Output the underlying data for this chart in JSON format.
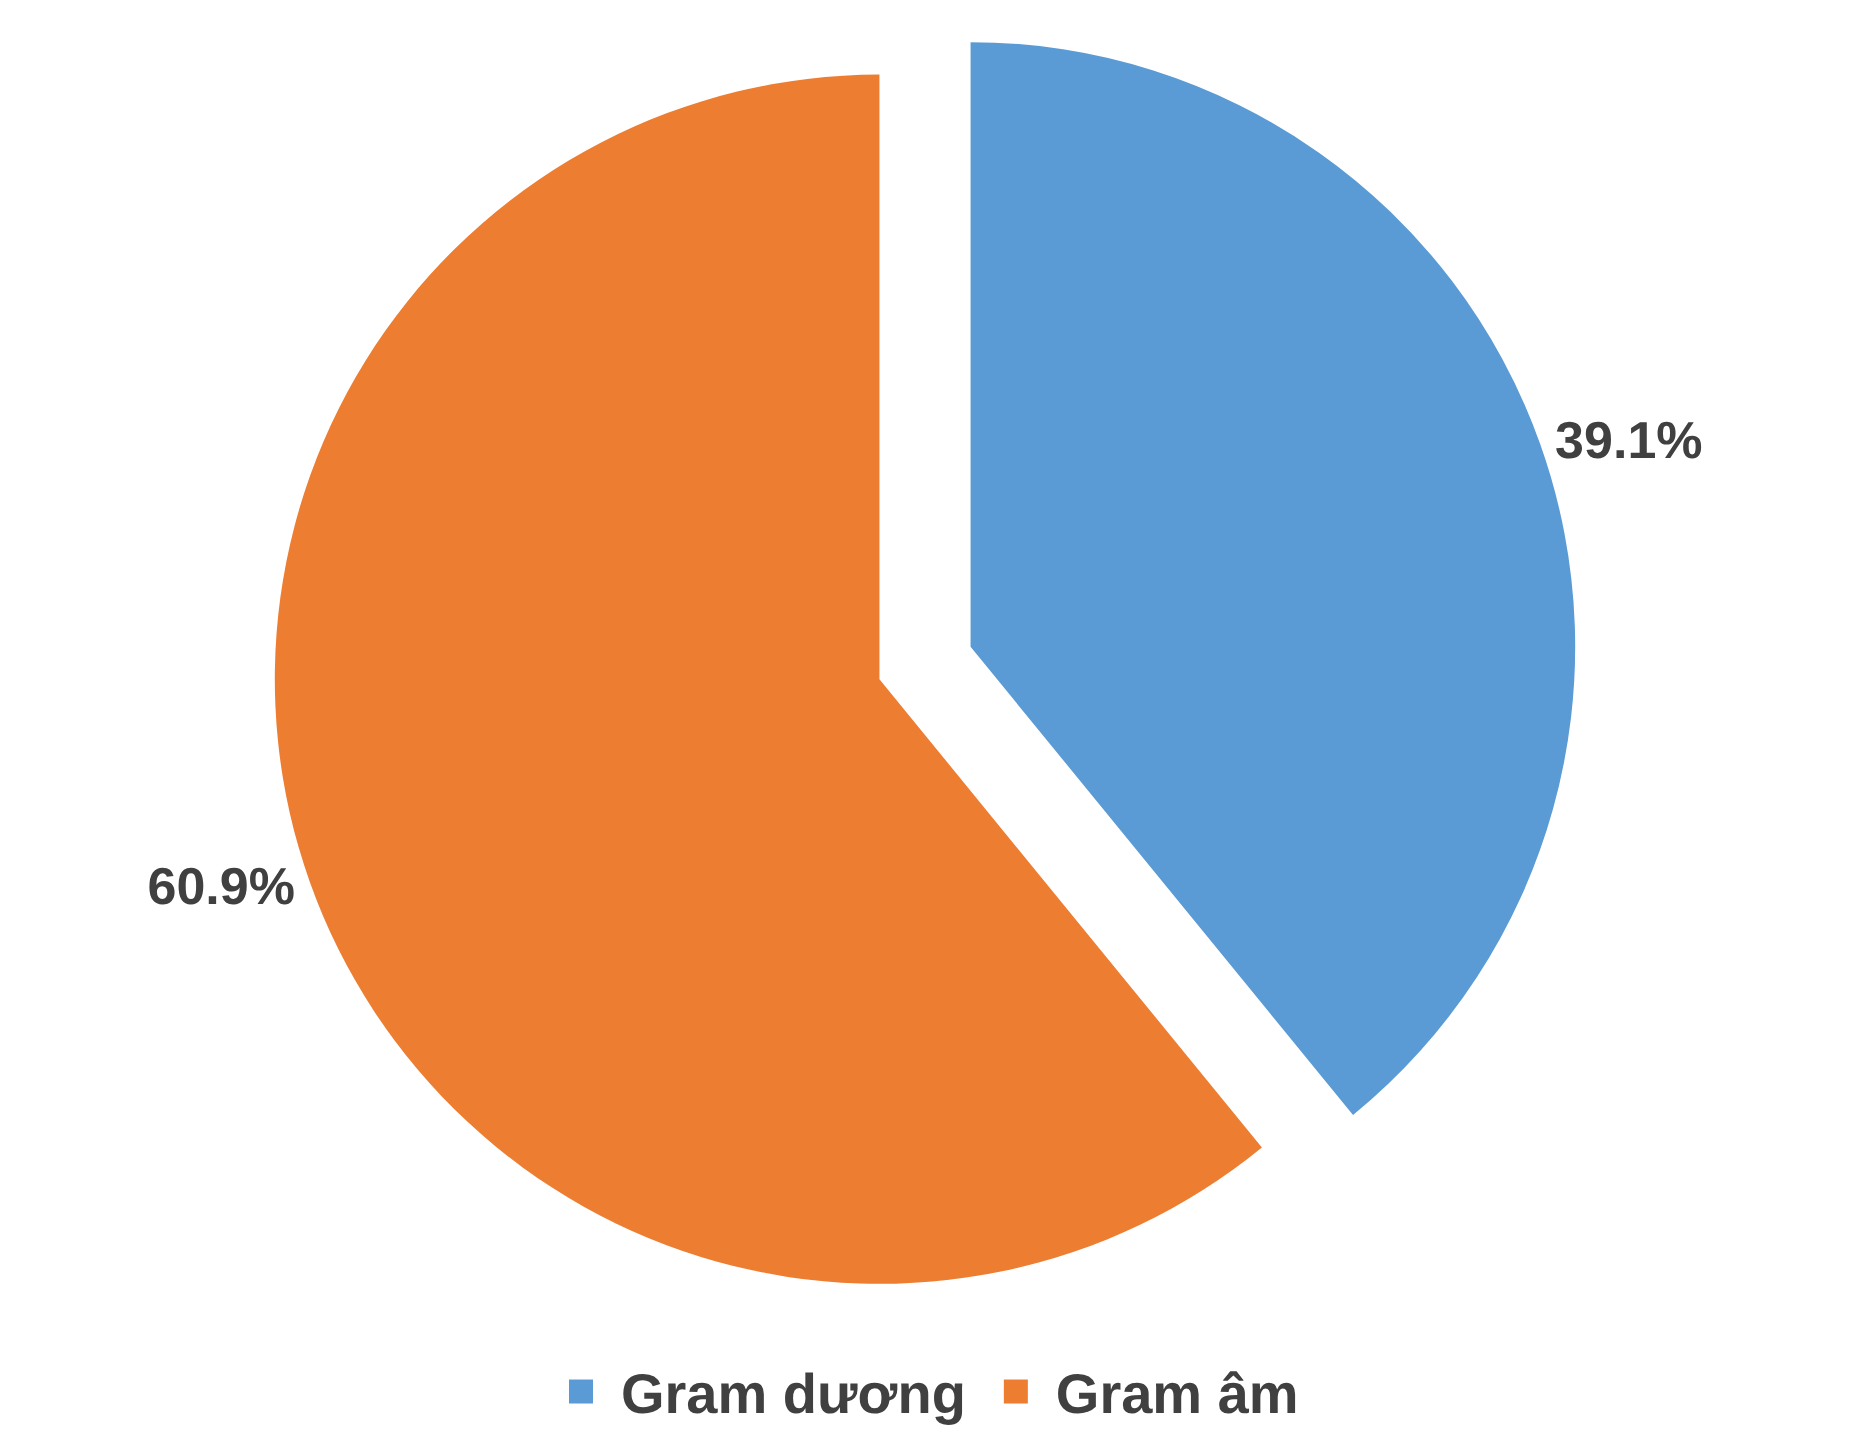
{
  "chart_data": {
    "type": "pie",
    "categories": [
      "Gram dương",
      "Gram âm"
    ],
    "values": [
      39.1,
      60.9
    ],
    "colors": [
      "#5b9bd5",
      "#ed7d31"
    ],
    "value_labels": [
      "39.1%",
      "60.9%"
    ],
    "legend": "bottom"
  }
}
